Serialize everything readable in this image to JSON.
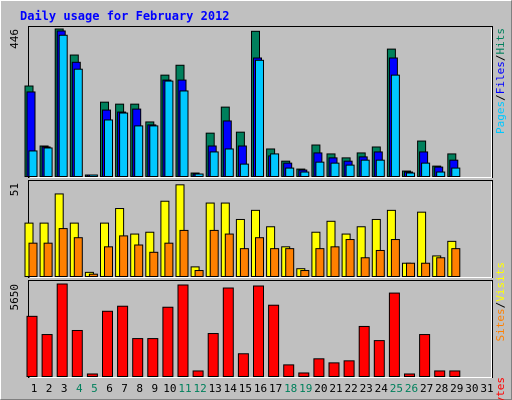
{
  "chart_data": [
    {
      "type": "bar",
      "title": "Daily usage for February 2012",
      "categories": [
        "1",
        "2",
        "3",
        "4",
        "5",
        "6",
        "7",
        "8",
        "9",
        "10",
        "11",
        "12",
        "13",
        "14",
        "15",
        "16",
        "17",
        "18",
        "19",
        "20",
        "21",
        "22",
        "23",
        "24",
        "25",
        "26",
        "27",
        "28",
        "29",
        "30",
        "31"
      ],
      "category_colors": [
        "#000000",
        "#000000",
        "#000000",
        "#00805c",
        "#00805c",
        "#000000",
        "#000000",
        "#000000",
        "#000000",
        "#000000",
        "#00805c",
        "#00805c",
        "#000000",
        "#000000",
        "#000000",
        "#000000",
        "#000000",
        "#00805c",
        "#00805c",
        "#000000",
        "#000000",
        "#000000",
        "#000000",
        "#000000",
        "#00805c",
        "#00805c",
        "#000000",
        "#000000",
        "#000000",
        "#000000",
        "#000000"
      ],
      "ylim": [
        0,
        446
      ],
      "yticks": [
        446
      ],
      "legend_separator": "/",
      "series": [
        {
          "name": "Hits",
          "color": "#00805c",
          "values": [
            273,
            91,
            446,
            367,
            3,
            224,
            218,
            218,
            164,
            306,
            336,
            9,
            130,
            209,
            133,
            439,
            82,
            45,
            21,
            94,
            67,
            55,
            70,
            88,
            385,
            15,
            106,
            30,
            67,
            null,
            null
          ]
        },
        {
          "name": "Files",
          "color": "#0000ff",
          "values": [
            255,
            88,
            440,
            345,
            3,
            200,
            194,
            203,
            155,
            291,
            291,
            6,
            91,
            167,
            91,
            358,
            61,
            39,
            18,
            70,
            55,
            45,
            58,
            73,
            358,
            12,
            73,
            27,
            48,
            null,
            null
          ]
        },
        {
          "name": "Pages",
          "color": "#00c8ff",
          "values": [
            76,
            85,
            427,
            324,
            3,
            170,
            191,
            152,
            152,
            288,
            258,
            6,
            73,
            82,
            36,
            351,
            67,
            24,
            12,
            42,
            39,
            33,
            48,
            48,
            306,
            9,
            39,
            12,
            24,
            null,
            null
          ]
        }
      ]
    },
    {
      "type": "bar",
      "ylim": [
        0,
        51
      ],
      "yticks": [
        51
      ],
      "legend_separator": "/",
      "series": [
        {
          "name": "Visits",
          "color": "#ffff00",
          "values": [
            29,
            29,
            45,
            29,
            2,
            29,
            37,
            23,
            24,
            41,
            50,
            5,
            40,
            40,
            31,
            36,
            27,
            16,
            4,
            24,
            30,
            23,
            27,
            31,
            36,
            7,
            35,
            11,
            19,
            null,
            null
          ]
        },
        {
          "name": "Sites",
          "color": "#ff8000",
          "values": [
            18,
            18,
            26,
            21,
            1,
            16,
            22,
            17,
            13,
            18,
            25,
            3,
            25,
            23,
            15,
            21,
            15,
            15,
            3,
            15,
            16,
            20,
            10,
            14,
            20,
            7,
            7,
            10,
            15,
            null,
            null
          ]
        }
      ]
    },
    {
      "type": "bar",
      "ylim": [
        0,
        5650
      ],
      "yticks": [
        5650
      ],
      "series": [
        {
          "name": "KBytes",
          "color": "#ff0000",
          "values": [
            3664,
            2546,
            5650,
            2795,
            124,
            3975,
            4285,
            2298,
            2298,
            4223,
            5589,
            310,
            2608,
            5403,
            1366,
            5527,
            4347,
            683,
            186,
            1056,
            807,
            932,
            3043,
            2174,
            5092,
            124,
            2546,
            310,
            310,
            null,
            null
          ]
        }
      ]
    }
  ]
}
